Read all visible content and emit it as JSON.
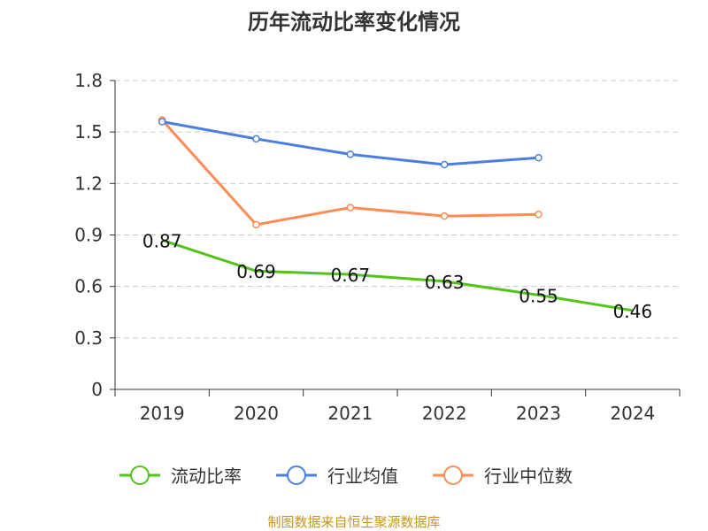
{
  "chart_data": {
    "type": "line",
    "title": "历年流动比率变化情况",
    "categories": [
      "2019",
      "2020",
      "2021",
      "2022",
      "2023",
      "2024"
    ],
    "ylim": [
      0,
      1.8
    ],
    "yticks": [
      "0",
      "0.3",
      "0.6",
      "0.9",
      "1.2",
      "1.5",
      "1.8"
    ],
    "grid": true,
    "legend_position": "bottom",
    "series": [
      {
        "name": "流动比率",
        "color": "#52c41a",
        "values": [
          0.87,
          0.69,
          0.67,
          0.63,
          0.55,
          0.46
        ],
        "labels": [
          "0.87",
          "0.69",
          "0.67",
          "0.63",
          "0.55",
          "0.46"
        ],
        "show_markers": false
      },
      {
        "name": "行业均值",
        "color": "#4a7fe0",
        "values": [
          1.56,
          1.46,
          1.37,
          1.31,
          1.35,
          null
        ],
        "show_markers": true
      },
      {
        "name": "行业中位数",
        "color": "#ff8c55",
        "values": [
          1.57,
          0.96,
          1.06,
          1.01,
          1.02,
          null
        ],
        "show_markers": true
      }
    ],
    "source": "制图数据来自恒生聚源数据库"
  }
}
